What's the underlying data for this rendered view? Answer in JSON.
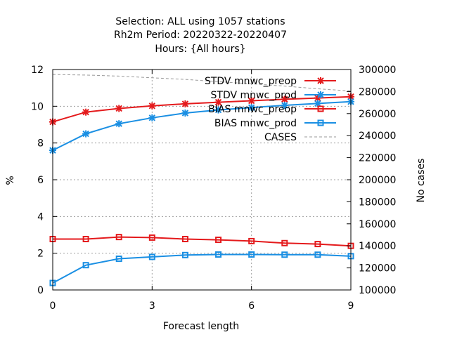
{
  "chart_data": {
    "type": "line",
    "title_lines": [
      "Selection: ALL using  1057 stations",
      "Rh2m   Period: 20220322-20220407",
      "Hours: {All hours}"
    ],
    "xlabel": "Forecast length",
    "ylabel": "%",
    "y2label": "No cases",
    "xlim": [
      0,
      9
    ],
    "ylim": [
      0,
      12
    ],
    "y2lim": [
      100000,
      300000
    ],
    "xticks": [
      0,
      3,
      6,
      9
    ],
    "yticks": [
      0,
      2,
      4,
      6,
      8,
      10,
      12
    ],
    "y2ticks": [
      100000,
      120000,
      140000,
      160000,
      180000,
      200000,
      220000,
      240000,
      260000,
      280000,
      300000
    ],
    "grid": true,
    "legend_position": "top-right",
    "x": [
      0,
      1,
      2,
      3,
      4,
      5,
      6,
      7,
      8,
      9
    ],
    "series": [
      {
        "name": "STDV mnwc_preop",
        "axis": "y",
        "color": "#e41a1c",
        "marker": "star",
        "dash": "solid",
        "values": [
          9.15,
          9.68,
          9.88,
          10.02,
          10.13,
          10.22,
          10.3,
          10.38,
          10.45,
          10.52
        ]
      },
      {
        "name": "STDV mnwc_prod",
        "axis": "y",
        "color": "#1a8fe3",
        "marker": "star",
        "dash": "solid",
        "values": [
          7.6,
          8.5,
          9.05,
          9.37,
          9.63,
          9.8,
          9.93,
          10.05,
          10.15,
          10.25
        ]
      },
      {
        "name": "BIAS mnwc_preop",
        "axis": "y",
        "color": "#e41a1c",
        "marker": "square",
        "dash": "solid",
        "values": [
          2.77,
          2.77,
          2.88,
          2.85,
          2.77,
          2.73,
          2.66,
          2.55,
          2.5,
          2.4
        ]
      },
      {
        "name": "BIAS mnwc_prod",
        "axis": "y",
        "color": "#1a8fe3",
        "marker": "square",
        "dash": "solid",
        "values": [
          0.38,
          1.35,
          1.7,
          1.8,
          1.9,
          1.93,
          1.93,
          1.92,
          1.92,
          1.84
        ]
      },
      {
        "name": "CASES",
        "axis": "y2",
        "color": "#999999",
        "marker": "none",
        "dash": "dashed",
        "values": [
          295500,
          295000,
          294000,
          292500,
          291000,
          289000,
          287000,
          285000,
          282500,
          280500
        ]
      }
    ]
  }
}
